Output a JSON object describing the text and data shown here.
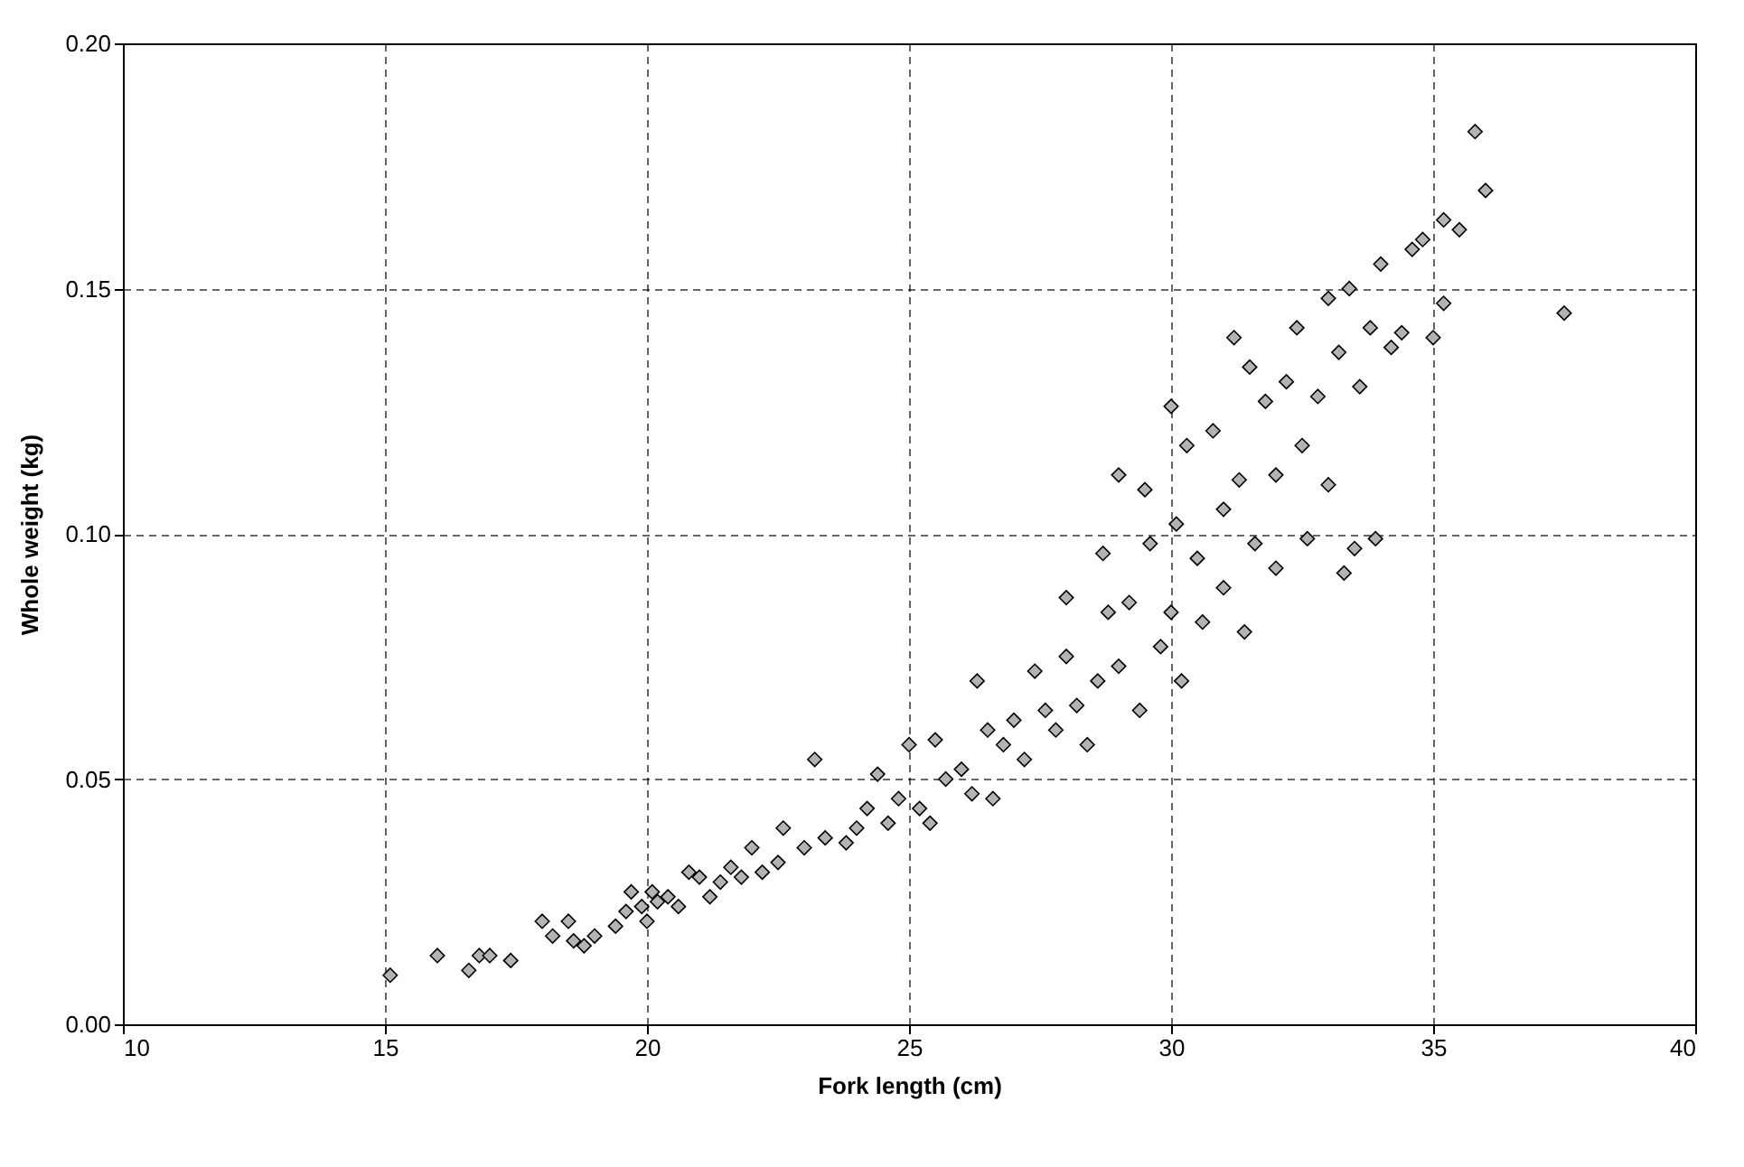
{
  "chart_data": {
    "type": "scatter",
    "xlabel": "Fork length (cm)",
    "ylabel": "Whole weight (kg)",
    "xlim": [
      10,
      40
    ],
    "xticks": [
      10,
      15,
      20,
      25,
      30,
      35,
      40
    ],
    "ylim": [
      0,
      0.2
    ],
    "yticks": [
      {
        "value": 0,
        "label": "0.00"
      },
      {
        "value": 0.05,
        "label": "0.05"
      },
      {
        "value": 0.1,
        "label": "0.10"
      },
      {
        "value": 0.15,
        "label": "0.15"
      },
      {
        "value": 0.2,
        "label": "0.20"
      }
    ],
    "grid": true,
    "marker": "diamond",
    "series": [
      {
        "color": "#b3b3b3",
        "x": [
          15.1,
          16.0,
          16.6,
          16.8,
          17.0,
          17.4,
          18.0,
          18.2,
          18.5,
          18.6,
          18.8,
          19.0,
          19.4,
          19.6,
          19.7,
          19.9,
          20.0,
          20.1,
          20.2,
          20.4,
          20.6,
          20.8,
          21.0,
          21.2,
          21.4,
          21.6,
          21.8,
          22.0,
          22.2,
          22.5,
          22.6,
          23.0,
          23.2,
          23.4,
          23.8,
          24.0,
          24.2,
          24.4,
          24.6,
          24.8,
          25.0,
          25.2,
          25.4,
          25.5,
          25.7,
          26.0,
          26.2,
          26.3,
          26.5,
          26.6,
          26.8,
          27.0,
          27.2,
          27.4,
          27.6,
          27.8,
          28.0,
          28.0,
          28.2,
          28.4,
          28.6,
          28.7,
          28.8,
          29.0,
          29.0,
          29.2,
          29.4,
          29.5,
          29.6,
          29.8,
          30.0,
          30.0,
          30.1,
          30.2,
          30.3,
          30.5,
          30.6,
          30.8,
          31.0,
          31.0,
          31.2,
          31.3,
          31.4,
          31.5,
          31.6,
          31.8,
          32.0,
          32.0,
          32.2,
          32.4,
          32.5,
          32.6,
          32.8,
          33.0,
          33.0,
          33.2,
          33.3,
          33.4,
          33.5,
          33.6,
          33.8,
          33.9,
          34.0,
          34.2,
          34.4,
          34.6,
          34.8,
          35.0,
          35.2,
          35.2,
          35.5,
          35.8,
          36.0,
          37.5
        ],
        "values": [
          0.01,
          0.014,
          0.011,
          0.014,
          0.014,
          0.013,
          0.021,
          0.018,
          0.021,
          0.017,
          0.016,
          0.018,
          0.02,
          0.023,
          0.027,
          0.024,
          0.021,
          0.027,
          0.025,
          0.026,
          0.024,
          0.031,
          0.03,
          0.026,
          0.029,
          0.032,
          0.03,
          0.036,
          0.031,
          0.033,
          0.04,
          0.036,
          0.054,
          0.038,
          0.037,
          0.04,
          0.044,
          0.051,
          0.041,
          0.046,
          0.057,
          0.044,
          0.041,
          0.058,
          0.05,
          0.052,
          0.047,
          0.07,
          0.06,
          0.046,
          0.057,
          0.062,
          0.054,
          0.072,
          0.064,
          0.06,
          0.075,
          0.087,
          0.065,
          0.057,
          0.07,
          0.096,
          0.084,
          0.112,
          0.073,
          0.086,
          0.064,
          0.109,
          0.098,
          0.077,
          0.126,
          0.084,
          0.102,
          0.07,
          0.118,
          0.095,
          0.082,
          0.121,
          0.105,
          0.089,
          0.14,
          0.111,
          0.08,
          0.134,
          0.098,
          0.127,
          0.112,
          0.093,
          0.131,
          0.142,
          0.118,
          0.099,
          0.128,
          0.148,
          0.11,
          0.137,
          0.092,
          0.15,
          0.097,
          0.13,
          0.142,
          0.099,
          0.155,
          0.138,
          0.141,
          0.158,
          0.16,
          0.14,
          0.164,
          0.147,
          0.162,
          0.182,
          0.17,
          0.145
        ]
      }
    ]
  }
}
